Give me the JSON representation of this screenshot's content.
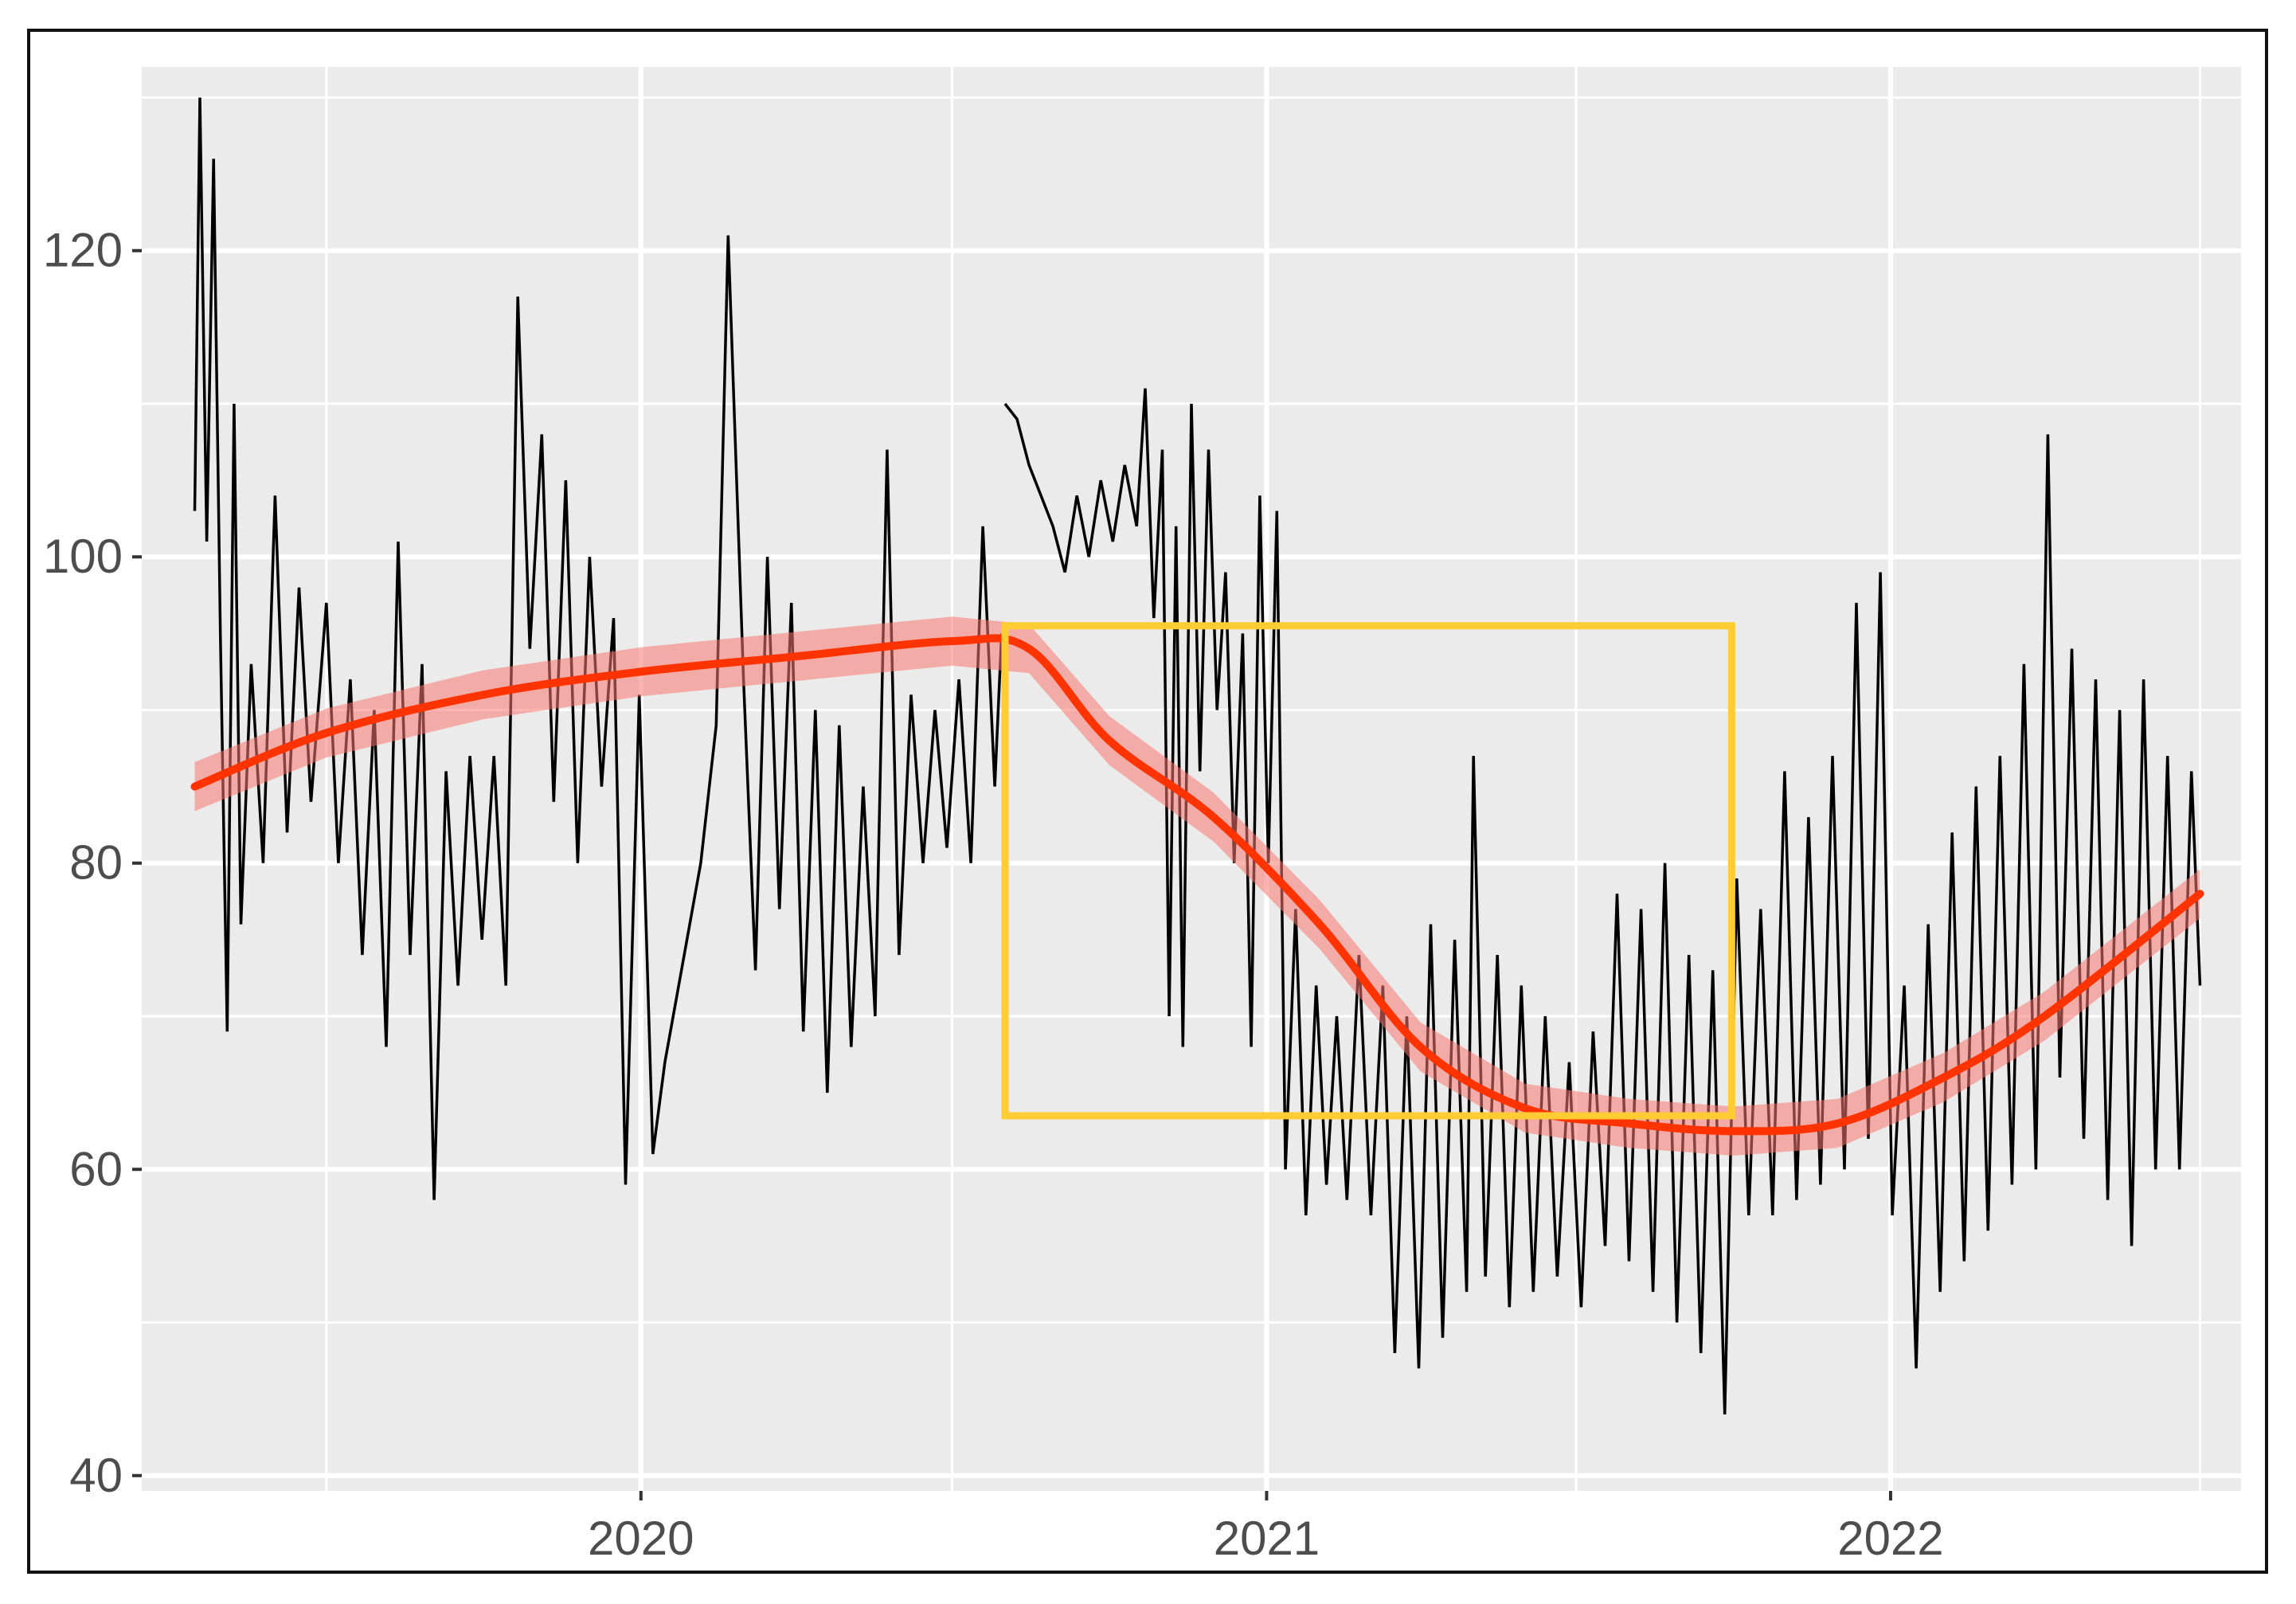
{
  "chart_data": {
    "type": "line",
    "title": "",
    "xlabel": "",
    "ylabel": "",
    "xlim": [
      "2019-03-15",
      "2022-07-25"
    ],
    "ylim": [
      39,
      132
    ],
    "x_ticks": [
      {
        "date": "2020-01-01",
        "label": "2020"
      },
      {
        "date": "2021-01-01",
        "label": "2021"
      },
      {
        "date": "2022-01-01",
        "label": "2022"
      }
    ],
    "x_minor_ticks": [
      "2019-07-01",
      "2020-07-01",
      "2021-07-01",
      "2022-07-01"
    ],
    "y_ticks": [
      40,
      60,
      80,
      100,
      120
    ],
    "y_minor_ticks": [
      50,
      70,
      90,
      110,
      130
    ],
    "grid": true,
    "panel_background": "#ebebeb",
    "series": [
      {
        "style": "daily-line",
        "color": "#000000",
        "points": [
          [
            "2019-04-15",
            103
          ],
          [
            "2019-04-18",
            130
          ],
          [
            "2019-04-22",
            101
          ],
          [
            "2019-04-26",
            126
          ],
          [
            "2019-04-30",
            95
          ],
          [
            "2019-05-04",
            69
          ],
          [
            "2019-05-08",
            110
          ],
          [
            "2019-05-12",
            76
          ],
          [
            "2019-05-18",
            93
          ],
          [
            "2019-05-25",
            80
          ],
          [
            "2019-06-01",
            104
          ],
          [
            "2019-06-08",
            82
          ],
          [
            "2019-06-15",
            98
          ],
          [
            "2019-06-22",
            84
          ],
          [
            "2019-07-01",
            97
          ],
          [
            "2019-07-08",
            80
          ],
          [
            "2019-07-15",
            92
          ],
          [
            "2019-07-22",
            74
          ],
          [
            "2019-07-29",
            90
          ],
          [
            "2019-08-05",
            68
          ],
          [
            "2019-08-12",
            101
          ],
          [
            "2019-08-19",
            74
          ],
          [
            "2019-08-26",
            93
          ],
          [
            "2019-09-02",
            58
          ],
          [
            "2019-09-09",
            86
          ],
          [
            "2019-09-16",
            72
          ],
          [
            "2019-09-23",
            87
          ],
          [
            "2019-09-30",
            75
          ],
          [
            "2019-10-07",
            87
          ],
          [
            "2019-10-14",
            72
          ],
          [
            "2019-10-21",
            117
          ],
          [
            "2019-10-28",
            94
          ],
          [
            "2019-11-04",
            108
          ],
          [
            "2019-11-11",
            84
          ],
          [
            "2019-11-18",
            105
          ],
          [
            "2019-11-25",
            80
          ],
          [
            "2019-12-02",
            100
          ],
          [
            "2019-12-09",
            85
          ],
          [
            "2019-12-16",
            96
          ],
          [
            "2019-12-23",
            59
          ],
          [
            "2019-12-31",
            91
          ],
          [
            "2020-01-08",
            61
          ],
          [
            "2020-01-15",
            67
          ],
          [
            "2020-02-05",
            80
          ],
          [
            "2020-02-14",
            89
          ],
          [
            "2020-02-21",
            121
          ],
          [
            "2020-03-01",
            92
          ],
          [
            "2020-03-08",
            73
          ],
          [
            "2020-03-15",
            100
          ],
          [
            "2020-03-22",
            77
          ],
          [
            "2020-03-29",
            97
          ],
          [
            "2020-04-05",
            69
          ],
          [
            "2020-04-12",
            90
          ],
          [
            "2020-04-19",
            65
          ],
          [
            "2020-04-26",
            89
          ],
          [
            "2020-05-03",
            68
          ],
          [
            "2020-05-10",
            85
          ],
          [
            "2020-05-17",
            70
          ],
          [
            "2020-05-24",
            107
          ],
          [
            "2020-05-31",
            74
          ],
          [
            "2020-06-07",
            91
          ],
          [
            "2020-06-14",
            80
          ],
          [
            "2020-06-21",
            90
          ],
          [
            "2020-06-28",
            81
          ],
          [
            "2020-07-05",
            92
          ],
          [
            "2020-07-12",
            80
          ],
          [
            "2020-07-19",
            102
          ],
          [
            "2020-07-26",
            85
          ],
          [
            "2020-07-30",
            95
          ],
          [
            "2020-07-31",
            null
          ],
          [
            "2020-08-01",
            110
          ],
          [
            "2020-08-08",
            109
          ],
          [
            "2020-08-15",
            106
          ],
          [
            "2020-08-22",
            104
          ],
          [
            "2020-08-29",
            102
          ],
          [
            "2020-09-05",
            99
          ],
          [
            "2020-09-12",
            104
          ],
          [
            "2020-09-19",
            100
          ],
          [
            "2020-09-26",
            105
          ],
          [
            "2020-10-03",
            101
          ],
          [
            "2020-10-10",
            106
          ],
          [
            "2020-10-17",
            102
          ],
          [
            "2020-10-22",
            111
          ],
          [
            "2020-10-27",
            96
          ],
          [
            "2020-11-01",
            107
          ],
          [
            "2020-11-05",
            70
          ],
          [
            "2020-11-09",
            102
          ],
          [
            "2020-11-13",
            68
          ],
          [
            "2020-11-18",
            110
          ],
          [
            "2020-11-23",
            86
          ],
          [
            "2020-11-28",
            107
          ],
          [
            "2020-12-03",
            90
          ],
          [
            "2020-12-08",
            99
          ],
          [
            "2020-12-13",
            80
          ],
          [
            "2020-12-18",
            95
          ],
          [
            "2020-12-23",
            68
          ],
          [
            "2020-12-28",
            104
          ],
          [
            "2021-01-02",
            80
          ],
          [
            "2021-01-07",
            103
          ],
          [
            "2021-01-12",
            60
          ],
          [
            "2021-01-18",
            77
          ],
          [
            "2021-01-24",
            57
          ],
          [
            "2021-01-30",
            72
          ],
          [
            "2021-02-05",
            59
          ],
          [
            "2021-02-11",
            70
          ],
          [
            "2021-02-17",
            58
          ],
          [
            "2021-02-24",
            74
          ],
          [
            "2021-03-03",
            57
          ],
          [
            "2021-03-10",
            72
          ],
          [
            "2021-03-17",
            48
          ],
          [
            "2021-03-24",
            70
          ],
          [
            "2021-03-31",
            47
          ],
          [
            "2021-04-07",
            76
          ],
          [
            "2021-04-14",
            49
          ],
          [
            "2021-04-21",
            75
          ],
          [
            "2021-04-28",
            52
          ],
          [
            "2021-05-02",
            87
          ],
          [
            "2021-05-09",
            53
          ],
          [
            "2021-05-16",
            74
          ],
          [
            "2021-05-23",
            51
          ],
          [
            "2021-05-30",
            72
          ],
          [
            "2021-06-06",
            52
          ],
          [
            "2021-06-13",
            70
          ],
          [
            "2021-06-20",
            53
          ],
          [
            "2021-06-27",
            67
          ],
          [
            "2021-07-04",
            51
          ],
          [
            "2021-07-11",
            69
          ],
          [
            "2021-07-18",
            55
          ],
          [
            "2021-07-25",
            78
          ],
          [
            "2021-08-01",
            54
          ],
          [
            "2021-08-08",
            77
          ],
          [
            "2021-08-15",
            52
          ],
          [
            "2021-08-22",
            80
          ],
          [
            "2021-08-29",
            50
          ],
          [
            "2021-09-05",
            74
          ],
          [
            "2021-09-12",
            48
          ],
          [
            "2021-09-19",
            73
          ],
          [
            "2021-09-26",
            44
          ],
          [
            "2021-10-03",
            79
          ],
          [
            "2021-10-10",
            57
          ],
          [
            "2021-10-17",
            77
          ],
          [
            "2021-10-24",
            57
          ],
          [
            "2021-10-31",
            86
          ],
          [
            "2021-11-07",
            58
          ],
          [
            "2021-11-14",
            83
          ],
          [
            "2021-11-21",
            59
          ],
          [
            "2021-11-28",
            87
          ],
          [
            "2021-12-05",
            60
          ],
          [
            "2021-12-12",
            97
          ],
          [
            "2021-12-19",
            62
          ],
          [
            "2021-12-26",
            99
          ],
          [
            "2022-01-02",
            57
          ],
          [
            "2022-01-09",
            72
          ],
          [
            "2022-01-16",
            47
          ],
          [
            "2022-01-23",
            76
          ],
          [
            "2022-01-30",
            52
          ],
          [
            "2022-02-06",
            82
          ],
          [
            "2022-02-13",
            54
          ],
          [
            "2022-02-20",
            85
          ],
          [
            "2022-02-27",
            56
          ],
          [
            "2022-03-06",
            87
          ],
          [
            "2022-03-13",
            59
          ],
          [
            "2022-03-20",
            93
          ],
          [
            "2022-03-27",
            60
          ],
          [
            "2022-04-03",
            108
          ],
          [
            "2022-04-10",
            66
          ],
          [
            "2022-04-17",
            94
          ],
          [
            "2022-04-24",
            62
          ],
          [
            "2022-05-01",
            92
          ],
          [
            "2022-05-08",
            58
          ],
          [
            "2022-05-15",
            90
          ],
          [
            "2022-05-22",
            55
          ],
          [
            "2022-05-29",
            92
          ],
          [
            "2022-06-05",
            60
          ],
          [
            "2022-06-12",
            87
          ],
          [
            "2022-06-19",
            60
          ],
          [
            "2022-06-26",
            86
          ],
          [
            "2022-07-01",
            72
          ]
        ]
      },
      {
        "style": "smooth-trend",
        "color": "#ff3300",
        "ribbon_color": "#f8766d",
        "points": [
          [
            "2019-04-15",
            85
          ],
          [
            "2019-07-01",
            88.5
          ],
          [
            "2019-10-01",
            91
          ],
          [
            "2020-01-01",
            92.5
          ],
          [
            "2020-04-01",
            93.5
          ],
          [
            "2020-07-01",
            94.5
          ],
          [
            "2020-08-15",
            94
          ],
          [
            "2020-10-01",
            88
          ],
          [
            "2020-12-01",
            83
          ],
          [
            "2021-02-01",
            76
          ],
          [
            "2021-04-01",
            68
          ],
          [
            "2021-06-01",
            64
          ],
          [
            "2021-08-01",
            63
          ],
          [
            "2021-10-01",
            62.5
          ],
          [
            "2021-12-01",
            63
          ],
          [
            "2022-02-01",
            66
          ],
          [
            "2022-04-01",
            70
          ],
          [
            "2022-07-01",
            78
          ]
        ]
      }
    ],
    "annotations": [
      {
        "type": "rectangle",
        "color": "#ffcc33",
        "x0": "2020-08-01",
        "x1": "2021-09-30",
        "y0": 63.5,
        "y1": 95.5
      }
    ]
  }
}
